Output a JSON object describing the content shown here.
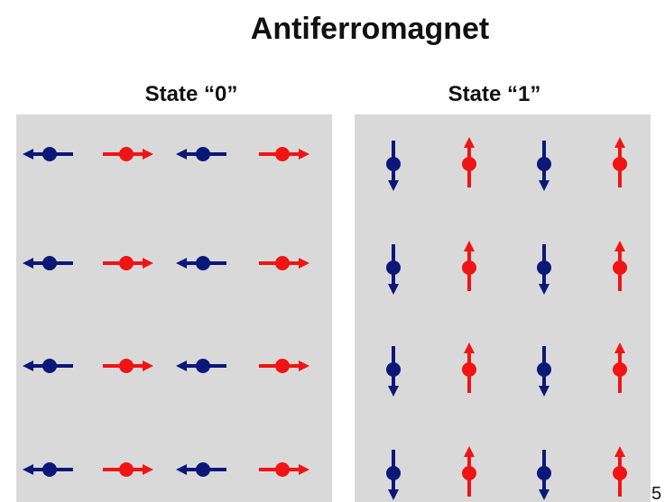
{
  "title": "Antiferromagnet",
  "panels": [
    {
      "label": "State “0”"
    },
    {
      "label": "State “1”"
    }
  ],
  "page_number": "5"
}
